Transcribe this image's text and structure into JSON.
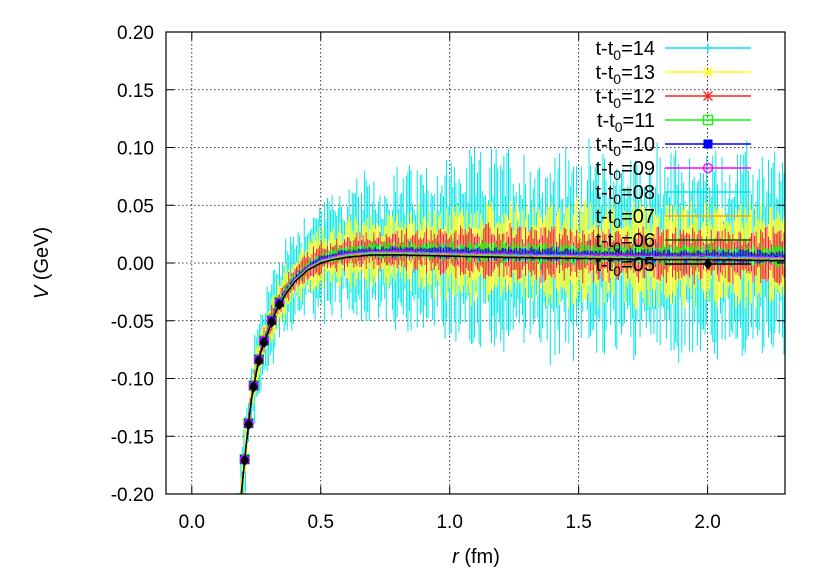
{
  "chart_data": {
    "type": "line",
    "title": "",
    "xlabel": {
      "var": "r",
      "unit": "(fm)"
    },
    "ylabel": {
      "var": "V",
      "unit": "(GeV)"
    },
    "xlim": [
      -0.1,
      2.3
    ],
    "ylim": [
      -0.2,
      0.2
    ],
    "grid": true,
    "legend_position": "top-right",
    "xticks": [
      {
        "value": 0.0,
        "label": "0.0"
      },
      {
        "value": 0.5,
        "label": "0.5"
      },
      {
        "value": 1.0,
        "label": "1.0"
      },
      {
        "value": 1.5,
        "label": "1.5"
      },
      {
        "value": 2.0,
        "label": "2.0"
      }
    ],
    "yticks": [
      {
        "value": 0.2,
        "label": "0.20"
      },
      {
        "value": 0.15,
        "label": "0.15"
      },
      {
        "value": 0.1,
        "label": "0.10"
      },
      {
        "value": 0.05,
        "label": "0.05"
      },
      {
        "value": 0.0,
        "label": "0.00"
      },
      {
        "value": -0.05,
        "label": "-0.05"
      },
      {
        "value": -0.1,
        "label": "-0.10"
      },
      {
        "value": -0.15,
        "label": "-0.15"
      },
      {
        "value": -0.2,
        "label": "-0.20"
      }
    ],
    "curve_r": [
      0.19,
      0.21,
      0.23,
      0.25,
      0.27,
      0.3,
      0.33,
      0.36,
      0.4,
      0.45,
      0.5,
      0.55,
      0.6,
      0.7,
      0.8,
      1.0,
      1.2,
      1.5,
      1.8,
      2.0,
      2.3
    ],
    "curve_v": [
      -0.205,
      -0.16,
      -0.12,
      -0.095,
      -0.075,
      -0.057,
      -0.04,
      -0.028,
      -0.016,
      -0.006,
      0.0,
      0.003,
      0.005,
      0.007,
      0.007,
      0.006,
      0.005,
      0.004,
      0.003,
      0.003,
      0.002
    ],
    "series": [
      {
        "prefix": "t-t",
        "sub": "0",
        "suffix": "=14",
        "color": "#00e5e5",
        "marker": "plus",
        "noise": 0.055,
        "offset": 0.005
      },
      {
        "prefix": "t-t",
        "sub": "0",
        "suffix": "=13",
        "color": "#ffff00",
        "marker": "cross",
        "noise": 0.028,
        "offset": 0.004
      },
      {
        "prefix": "t-t",
        "sub": "0",
        "suffix": "=12",
        "color": "#ff2020",
        "marker": "star",
        "noise": 0.015,
        "offset": 0.004
      },
      {
        "prefix": "t-t",
        "sub": "0",
        "suffix": "=11",
        "color": "#00ff00",
        "marker": "square-open",
        "noise": 0.006,
        "offset": 0.004
      },
      {
        "prefix": "t-t",
        "sub": "0",
        "suffix": "=10",
        "color": "#0000ff",
        "marker": "square-filled",
        "noise": 0.004,
        "offset": 0.003
      },
      {
        "prefix": "t-t",
        "sub": "0",
        "suffix": "=09",
        "color": "#ff00ff",
        "marker": "circle-open",
        "noise": 0.003,
        "offset": 0.003
      },
      {
        "prefix": "t-t",
        "sub": "0",
        "suffix": "=08",
        "color": "#00e5e5",
        "marker": "none",
        "noise": 0.002,
        "offset": 0.002
      },
      {
        "prefix": "t-t",
        "sub": "0",
        "suffix": "=07",
        "color": "#ffa500",
        "marker": "none",
        "noise": 0.002,
        "offset": 0.001
      },
      {
        "prefix": "t-t",
        "sub": "0",
        "suffix": "=06",
        "color": "#006400",
        "marker": "none",
        "noise": 0.0015,
        "offset": 0.0
      },
      {
        "prefix": "t-t",
        "sub": "0",
        "suffix": "=05",
        "color": "#000000",
        "marker": "diamond",
        "noise": 0.001,
        "offset": 0.0
      }
    ]
  }
}
